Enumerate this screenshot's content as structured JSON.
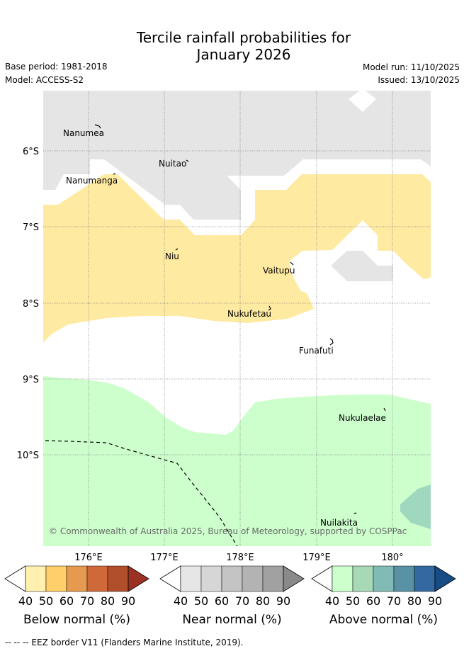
{
  "title_line1": "Tercile rainfall probabilities for",
  "title_line2": "January 2026",
  "base_period": "Base period: 1981-2018",
  "model": "Model: ACCESS-S2",
  "model_run": "Model run: 11/10/2025",
  "issued": "Issued: 13/10/2025",
  "copyright": "© Commonwealth of Australia 2025, Bureau of Meteorology, supported by COSPPac",
  "lat_labels": [
    "6°S",
    "7°S",
    "8°S",
    "9°S",
    "10°S"
  ],
  "lon_labels": [
    "176°E",
    "177°E",
    "178°E",
    "179°E",
    "180°"
  ],
  "places": [
    "Nanumea",
    "Nuitao",
    "Nanumanga",
    "Niu",
    "Vaitupu",
    "Nukufetau",
    "Funafuti",
    "Nukulaelae",
    "Nuilakita"
  ],
  "colorbars": [
    {
      "caption": "Below normal (%)",
      "colors": [
        "#ffffff",
        "#fff0b0",
        "#ffd06a",
        "#e59a4f",
        "#d0693a",
        "#b14e2c",
        "#9b3122"
      ]
    },
    {
      "caption": "Near normal (%)",
      "colors": [
        "#ffffff",
        "#e6e6e6",
        "#d6d6d6",
        "#c4c4c4",
        "#b3b3b3",
        "#a1a1a1",
        "#8a8a8a"
      ]
    },
    {
      "caption": "Above normal (%)",
      "colors": [
        "#ffffff",
        "#ccffcc",
        "#a8d9b7",
        "#82bab5",
        "#5892a4",
        "#3468a0",
        "#174c85"
      ]
    }
  ],
  "tick_labels": [
    "40",
    "50",
    "60",
    "70",
    "80",
    "90"
  ],
  "map_colors": {
    "near": "#e5e5e5",
    "below": "#ffeaa1",
    "above": "#ccffcc",
    "above_mid": "#9fd7bf"
  },
  "footer": "--  --  -- EEZ border V11 (Flanders Marine Institute, 2019)."
}
